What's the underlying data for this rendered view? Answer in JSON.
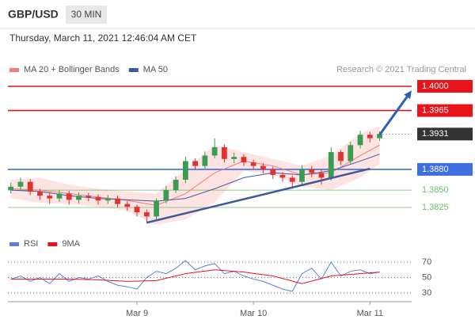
{
  "header": {
    "symbol": "GBP/USD",
    "timeframe": "30 MIN",
    "date": "Thursday, March 11, 2021 12:46:04 AM CET",
    "credit": "Research © 2021 Trading Central"
  },
  "chart_data": [
    {
      "type": "candlestick",
      "xlim": [
        -0.3,
        41.3
      ],
      "ylim": [
        1.3793,
        1.4016
      ],
      "up_color": "#3a9b52",
      "down_color": "#e0322f",
      "open": [
        1.385,
        1.3855,
        1.3862,
        1.3848,
        1.3842,
        1.3838,
        1.3845,
        1.3836,
        1.3842,
        1.384,
        1.3835,
        1.3838,
        1.383,
        1.3826,
        1.3818,
        1.3812,
        1.3835,
        1.385,
        1.3865,
        1.3892,
        1.3885,
        1.39,
        1.3912,
        1.3895,
        1.3898,
        1.389,
        1.3885,
        1.388,
        1.3872,
        1.3868,
        1.3862,
        1.388,
        1.3875,
        1.3868,
        1.3905,
        1.3892,
        1.3915,
        1.393,
        1.3925
      ],
      "high": [
        1.3861,
        1.3868,
        1.3866,
        1.3852,
        1.3847,
        1.385,
        1.3849,
        1.3847,
        1.3846,
        1.3844,
        1.3843,
        1.3842,
        1.3834,
        1.3829,
        1.3822,
        1.3838,
        1.3856,
        1.387,
        1.3898,
        1.3896,
        1.3906,
        1.3925,
        1.3916,
        1.3904,
        1.3902,
        1.3894,
        1.3889,
        1.3884,
        1.3876,
        1.3871,
        1.3886,
        1.3885,
        1.388,
        1.3912,
        1.3908,
        1.392,
        1.3936,
        1.3934,
        1.3935
      ],
      "low": [
        1.3845,
        1.385,
        1.3843,
        1.3836,
        1.383,
        1.3833,
        1.3829,
        1.3831,
        1.3834,
        1.3829,
        1.383,
        1.3825,
        1.382,
        1.3812,
        1.3803,
        1.3808,
        1.3831,
        1.3846,
        1.386,
        1.3879,
        1.388,
        1.3896,
        1.389,
        1.3889,
        1.3885,
        1.388,
        1.3874,
        1.3866,
        1.3862,
        1.3852,
        1.3858,
        1.3869,
        1.3858,
        1.3864,
        1.3886,
        1.3888,
        1.391,
        1.3919,
        1.3921
      ],
      "close": [
        1.3855,
        1.3862,
        1.3848,
        1.3842,
        1.3838,
        1.3845,
        1.3836,
        1.3842,
        1.384,
        1.3835,
        1.3838,
        1.383,
        1.3826,
        1.3818,
        1.3812,
        1.3835,
        1.385,
        1.3865,
        1.3892,
        1.3885,
        1.39,
        1.3912,
        1.3895,
        1.3898,
        1.389,
        1.3885,
        1.388,
        1.3872,
        1.3868,
        1.3862,
        1.388,
        1.3875,
        1.3868,
        1.3905,
        1.3892,
        1.3915,
        1.393,
        1.3925,
        1.3931
      ],
      "series": [
        {
          "name": "MA 20 + Bollinger Bands",
          "color": "#f47b7b",
          "band_color": "#fde3e1",
          "x": [
            0,
            3,
            6,
            9,
            12,
            15,
            18,
            21,
            24,
            27,
            30,
            33,
            36,
            38
          ],
          "values": [
            1.3852,
            1.385,
            1.3845,
            1.384,
            1.3835,
            1.3828,
            1.3845,
            1.3875,
            1.3892,
            1.3885,
            1.3872,
            1.3875,
            1.39,
            1.3915
          ],
          "upper": [
            1.3865,
            1.3868,
            1.3858,
            1.3852,
            1.3848,
            1.3845,
            1.388,
            1.3915,
            1.3905,
            1.3895,
            1.3885,
            1.39,
            1.3932,
            1.3942
          ],
          "lower": [
            1.3838,
            1.3832,
            1.383,
            1.3826,
            1.382,
            1.38,
            1.3808,
            1.3832,
            1.3878,
            1.3872,
            1.3855,
            1.385,
            1.3868,
            1.3888
          ]
        },
        {
          "name": "MA 50",
          "color": "#3f5a9a",
          "x": [
            0,
            3,
            6,
            9,
            12,
            15,
            18,
            21,
            24,
            27,
            30,
            33,
            36,
            38
          ],
          "values": [
            1.385,
            1.3848,
            1.3842,
            1.3838,
            1.3836,
            1.3834,
            1.3838,
            1.3852,
            1.3868,
            1.3875,
            1.3872,
            1.3878,
            1.3892,
            1.3902
          ]
        }
      ],
      "levels": [
        {
          "value": 1.4,
          "label": "1.4000",
          "color": "#e8141a",
          "kind": "box"
        },
        {
          "value": 1.3965,
          "label": "1.3965",
          "color": "#e8141a",
          "kind": "box"
        },
        {
          "value": 1.3931,
          "label": "1.3931",
          "color": "#333333",
          "kind": "current"
        },
        {
          "value": 1.388,
          "label": "1.3880",
          "color": "#3d6fe0",
          "kind": "box"
        },
        {
          "value": 1.385,
          "label": "1.3850",
          "color": "#6cbf6c",
          "kind": "text"
        },
        {
          "value": 1.3825,
          "label": "1.3825",
          "color": "#6cbf6c",
          "kind": "text"
        }
      ],
      "trendline": {
        "x": [
          14,
          37
        ],
        "y": [
          1.3803,
          1.3881
        ],
        "color": "#3f5a9a"
      },
      "arrow": {
        "x": [
          38,
          41.3
        ],
        "y": [
          1.393,
          1.3994
        ],
        "color": "#2f5fb0"
      }
    },
    {
      "type": "line",
      "xlim": [
        -0.3,
        41.3
      ],
      "ylim": [
        17.7,
        83.3
      ],
      "yticks": [
        70,
        50,
        30
      ],
      "xticks": [
        {
          "value": 13,
          "label": "Mar 9"
        },
        {
          "value": 25,
          "label": "Mar 10"
        },
        {
          "value": 37,
          "label": "Mar 11"
        }
      ],
      "series": [
        {
          "name": "RSI",
          "color": "#5b7fe0",
          "x": [
            0,
            1,
            2,
            3,
            4,
            5,
            6,
            7,
            8,
            9,
            10,
            11,
            12,
            13,
            14,
            15,
            16,
            17,
            18,
            19,
            20,
            21,
            22,
            23,
            24,
            25,
            26,
            27,
            28,
            29,
            30,
            31,
            32,
            33,
            34,
            35,
            36,
            37,
            38
          ],
          "values": [
            48,
            52,
            45,
            50,
            42,
            55,
            45,
            50,
            48,
            52,
            45,
            40,
            38,
            35,
            50,
            58,
            55,
            62,
            72,
            60,
            65,
            68,
            55,
            58,
            52,
            48,
            45,
            40,
            35,
            32,
            55,
            62,
            48,
            70,
            52,
            58,
            60,
            55,
            57
          ]
        },
        {
          "name": "9MA",
          "color": "#e8141a",
          "x": [
            0,
            3,
            6,
            9,
            12,
            15,
            18,
            21,
            24,
            27,
            30,
            33,
            36,
            38
          ],
          "values": [
            48,
            48,
            48,
            47,
            45,
            46,
            55,
            60,
            57,
            52,
            42,
            52,
            55,
            57
          ]
        }
      ]
    }
  ]
}
